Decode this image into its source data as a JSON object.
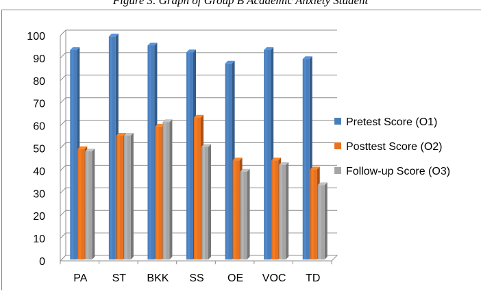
{
  "caption": "Figure 3. Graph of Group B Academic Anxiety Student",
  "chart_data": {
    "type": "bar",
    "categories": [
      "PA",
      "ST",
      "BKK",
      "SS",
      "OE",
      "VOC",
      "TD"
    ],
    "series": [
      {
        "name": "Pretest Score (O1)",
        "values": [
          93,
          99,
          95,
          92,
          87,
          93,
          89
        ],
        "color": "#4a7ebb"
      },
      {
        "name": "Posttest Score (O2)",
        "values": [
          49,
          55,
          59,
          63,
          44,
          44,
          40
        ],
        "color": "#e8721f"
      },
      {
        "name": "Follow-up Score (O3)",
        "values": [
          48,
          55,
          61,
          50,
          39,
          42,
          33
        ],
        "color": "#a5a5a5"
      }
    ],
    "yticks": [
      "0",
      "10",
      "20",
      "30",
      "40",
      "50",
      "60",
      "70",
      "80",
      "90",
      "100"
    ],
    "ylim": [
      0,
      100
    ],
    "grid": true,
    "legend_position": "right",
    "title": "",
    "xlabel": "",
    "ylabel": ""
  }
}
